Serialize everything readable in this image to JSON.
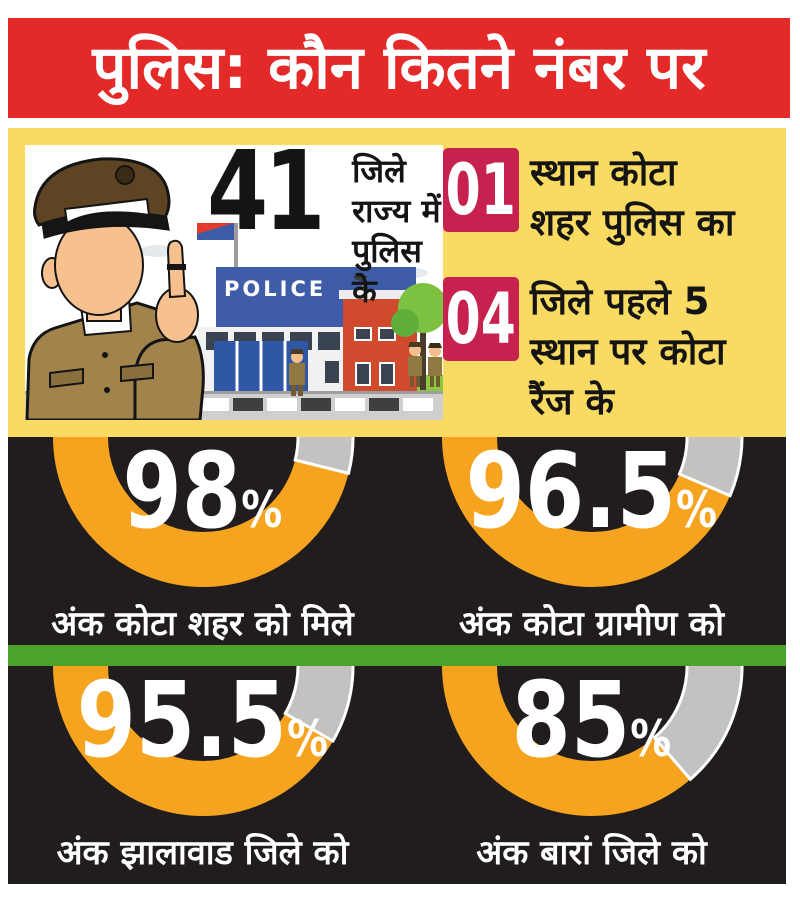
{
  "header": {
    "title": "पुलिस: कौन कितने नंबर पर"
  },
  "info": {
    "big_number": "41",
    "big_number_caption_lines": [
      "जिले राज्य में",
      "पुलिस के"
    ],
    "police_sign": "POLICE",
    "facts": [
      {
        "number": "01",
        "lines": [
          "स्थान कोटा",
          "शहर पुलिस का"
        ]
      },
      {
        "number": "04",
        "lines": [
          "जिले पहले 5",
          "स्थान पर कोटा",
          "रैंज के"
        ]
      }
    ]
  },
  "chart_data": {
    "type": "pie",
    "subtype": "half-donut-gauge",
    "title": "पुलिस: कौन कितने नंबर पर",
    "percent_sign": "%",
    "series": [
      {
        "name": "अंक कोटा शहर को मिले",
        "value": 98,
        "display_value": "98",
        "remainder": 2,
        "gray_sweep_deg": 14
      },
      {
        "name": "अंक कोटा ग्रामीण को",
        "value": 96.5,
        "display_value": "96.5",
        "remainder": 3.5,
        "gray_sweep_deg": 23
      },
      {
        "name": "अंक झालावाड जिले को",
        "value": 95.5,
        "display_value": "95.5",
        "remainder": 4.5,
        "gray_sweep_deg": 30
      },
      {
        "name": "अंक बारां जिले को",
        "value": 85,
        "display_value": "85",
        "remainder": 15,
        "gray_sweep_deg": 49
      }
    ],
    "layout": {
      "rows": 2,
      "cols": 2,
      "visible_part": "bottom half of donut",
      "legend": false,
      "outer_radius": 150,
      "inner_radius": 95
    }
  },
  "colors": {
    "banner_red": "#e42a28",
    "panel_yellow": "#f9da62",
    "fact_crimson": "#c7214f",
    "chart_black": "#211d1e",
    "divider_green": "#4ca32c",
    "arc_orange": "#f6a41f",
    "arc_remainder_gray": "#c3c2c0",
    "text_white": "#ffffff"
  }
}
